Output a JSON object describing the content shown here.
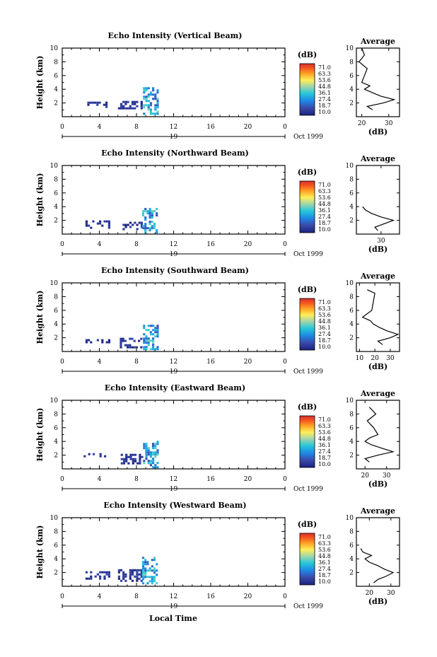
{
  "figure": {
    "x_axis_label": "Local Time",
    "date_label": "Oct 1999",
    "day_label": "19",
    "y_axis_label": "Height (km)",
    "colorbar_title": "(dB)",
    "colorbar_ticks": [
      "71.0",
      "63.3",
      "53.6",
      "44.8",
      "36.1",
      "27.4",
      "18.7",
      "10.0"
    ],
    "colorbar_colors": [
      "#d7301f",
      "#fc4e2a",
      "#fd8d3c",
      "#fed976",
      "#ffff4d",
      "#c7e9b4",
      "#7fcdbb",
      "#41b6c4",
      "#1d91c0",
      "#225ea8",
      "#2c3e9f",
      "#253494"
    ],
    "average_title": "Average",
    "average_unit": "(dB)"
  },
  "chart_data": [
    {
      "type": "heatmap",
      "title": "Echo Intensity (Vertical Beam)",
      "xlabel": "",
      "ylabel": "Height (km)",
      "xlim": [
        0,
        24
      ],
      "ylim": [
        0,
        10
      ],
      "x_ticks": [
        "0",
        "4",
        "8",
        "12",
        "16",
        "20",
        "0"
      ],
      "y_ticks": [
        "2",
        "4",
        "6",
        "8",
        "10"
      ],
      "colorbar": {
        "title": "(dB)",
        "min": 10.0,
        "max": 71.0
      },
      "echo_patches": [
        {
          "t0": 2.7,
          "t1": 4.8,
          "h0": 1.3,
          "h1": 2.2,
          "dB": 14
        },
        {
          "t0": 6.0,
          "t1": 8.5,
          "h0": 1.2,
          "h1": 2.3,
          "dB": 14
        },
        {
          "t0": 8.7,
          "t1": 10.2,
          "h0": 0.3,
          "h1": 4.3,
          "dB": 30
        }
      ],
      "average_profile": {
        "xlim": [
          18,
          34
        ],
        "x_ticks": [
          "20",
          "30"
        ],
        "ylim": [
          0,
          10
        ],
        "height": [
          1.0,
          1.5,
          2.0,
          2.5,
          3.0,
          3.5,
          4.0,
          4.5,
          5.0,
          6.0,
          7.0,
          8.0,
          9.0,
          10.0
        ],
        "dB": [
          24,
          22,
          28,
          32,
          27,
          24,
          21,
          23,
          20,
          21,
          22,
          19,
          21,
          20
        ]
      }
    },
    {
      "type": "heatmap",
      "title": "Echo Intensity (Northward Beam)",
      "xlabel": "",
      "ylabel": "Height (km)",
      "xlim": [
        0,
        24
      ],
      "ylim": [
        0,
        10
      ],
      "x_ticks": [
        "0",
        "4",
        "8",
        "12",
        "16",
        "20",
        "0"
      ],
      "y_ticks": [
        "2",
        "4",
        "6",
        "8",
        "10"
      ],
      "colorbar": {
        "title": "(dB)",
        "min": 10.0,
        "max": 71.0
      },
      "echo_patches": [
        {
          "t0": 2.5,
          "t1": 5.0,
          "h0": 1.0,
          "h1": 2.0,
          "dB": 14
        },
        {
          "t0": 6.5,
          "t1": 8.5,
          "h0": 0.6,
          "h1": 1.8,
          "dB": 14
        },
        {
          "t0": 8.6,
          "t1": 10.1,
          "h0": 0.3,
          "h1": 3.8,
          "dB": 30
        }
      ],
      "average_profile": {
        "xlim": [
          22,
          36
        ],
        "x_ticks": [
          "30"
        ],
        "ylim": [
          0,
          10
        ],
        "height": [
          0.5,
          1.0,
          1.5,
          2.0,
          2.5,
          3.0,
          3.5,
          4.0
        ],
        "dB": [
          29,
          28,
          31,
          34,
          30,
          27,
          25,
          24
        ]
      }
    },
    {
      "type": "heatmap",
      "title": "Echo Intensity (Southward Beam)",
      "xlabel": "",
      "ylabel": "Height (km)",
      "xlim": [
        0,
        24
      ],
      "ylim": [
        0,
        10
      ],
      "x_ticks": [
        "0",
        "4",
        "8",
        "12",
        "16",
        "20",
        "0"
      ],
      "y_ticks": [
        "2",
        "4",
        "6",
        "8",
        "10"
      ],
      "colorbar": {
        "title": "(dB)",
        "min": 10.0,
        "max": 71.0
      },
      "echo_patches": [
        {
          "t0": 2.5,
          "t1": 5.0,
          "h0": 1.2,
          "h1": 1.8,
          "dB": 14
        },
        {
          "t0": 6.2,
          "t1": 8.6,
          "h0": 0.6,
          "h1": 2.0,
          "dB": 14
        },
        {
          "t0": 8.7,
          "t1": 10.2,
          "h0": 0.3,
          "h1": 3.9,
          "dB": 30
        }
      ],
      "average_profile": {
        "xlim": [
          8,
          36
        ],
        "x_ticks": [
          "10",
          "20",
          "30"
        ],
        "ylim": [
          0,
          10
        ],
        "height": [
          1.0,
          1.5,
          2.0,
          2.5,
          3.0,
          3.5,
          4.0,
          4.5,
          5.0,
          5.5,
          6.0,
          8.5,
          9.0
        ],
        "dB": [
          25,
          22,
          30,
          35,
          28,
          23,
          19,
          17,
          12,
          15,
          18,
          20,
          15
        ]
      }
    },
    {
      "type": "heatmap",
      "title": "Echo Intensity (Eastward Beam)",
      "xlabel": "",
      "ylabel": "Height (km)",
      "xlim": [
        0,
        24
      ],
      "ylim": [
        0,
        10
      ],
      "x_ticks": [
        "0",
        "4",
        "8",
        "12",
        "16",
        "20",
        "0"
      ],
      "y_ticks": [
        "2",
        "4",
        "6",
        "8",
        "10"
      ],
      "colorbar": {
        "title": "(dB)",
        "min": 10.0,
        "max": 71.0
      },
      "echo_patches": [
        {
          "t0": 2.3,
          "t1": 4.8,
          "h0": 1.8,
          "h1": 2.3,
          "dB": 14
        },
        {
          "t0": 6.3,
          "t1": 8.5,
          "h0": 0.8,
          "h1": 2.2,
          "dB": 14
        },
        {
          "t0": 8.7,
          "t1": 10.2,
          "h0": 0.3,
          "h1": 4.1,
          "dB": 30
        }
      ],
      "average_profile": {
        "xlim": [
          16,
          36
        ],
        "x_ticks": [
          "20",
          "30"
        ],
        "ylim": [
          0,
          10
        ],
        "height": [
          1.0,
          1.5,
          2.0,
          2.5,
          3.0,
          3.5,
          4.0,
          4.5,
          5.0,
          6.0,
          7.0,
          8.0,
          9.0
        ],
        "dB": [
          22,
          20,
          26,
          33,
          28,
          23,
          20,
          22,
          26,
          24,
          21,
          25,
          22
        ]
      }
    },
    {
      "type": "heatmap",
      "title": "Echo Intensity (Westward Beam)",
      "xlabel": "Local Time",
      "ylabel": "Height (km)",
      "xlim": [
        0,
        24
      ],
      "ylim": [
        0,
        10
      ],
      "x_ticks": [
        "0",
        "4",
        "8",
        "12",
        "16",
        "20",
        "0"
      ],
      "y_ticks": [
        "2",
        "4",
        "6",
        "8",
        "10"
      ],
      "colorbar": {
        "title": "(dB)",
        "min": 10.0,
        "max": 71.0
      },
      "echo_patches": [
        {
          "t0": 2.5,
          "t1": 5.0,
          "h0": 1.0,
          "h1": 2.2,
          "dB": 14
        },
        {
          "t0": 6.0,
          "t1": 8.5,
          "h0": 0.8,
          "h1": 2.5,
          "dB": 14
        },
        {
          "t0": 8.6,
          "t1": 10.2,
          "h0": 0.3,
          "h1": 4.3,
          "dB": 30
        }
      ],
      "average_profile": {
        "xlim": [
          14,
          34
        ],
        "x_ticks": [
          "20",
          "30"
        ],
        "ylim": [
          0,
          10
        ],
        "height": [
          0.5,
          1.0,
          1.5,
          2.0,
          2.5,
          3.0,
          3.5,
          4.0,
          4.5,
          5.0,
          5.5
        ],
        "dB": [
          22,
          24,
          28,
          31,
          27,
          24,
          20,
          18,
          21,
          17,
          16
        ]
      }
    }
  ]
}
